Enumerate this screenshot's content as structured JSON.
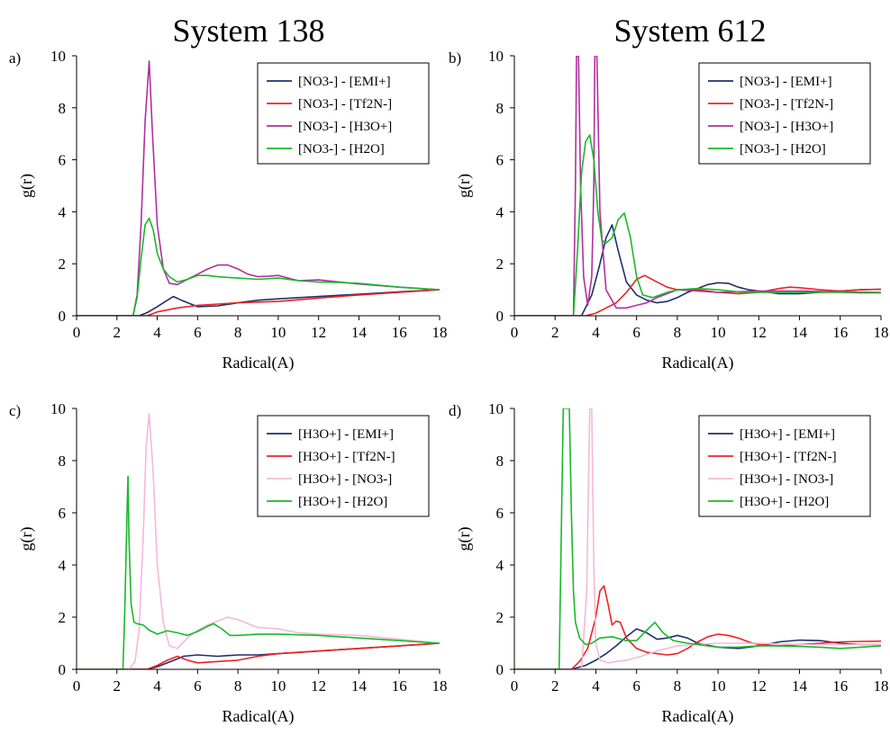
{
  "column_titles": [
    "System 138",
    "System 612"
  ],
  "colors": {
    "navy": "#1f2f6b",
    "red": "#ee2222",
    "magenta": "#b0309e",
    "pink": "#f5b8d9",
    "green": "#19b82a"
  },
  "chart_data": [
    {
      "type": "line",
      "panel_label": "a)",
      "xlabel": "Radical(A)",
      "ylabel": "g(r)",
      "xlim": [
        0,
        18
      ],
      "ylim": [
        0,
        10
      ],
      "xticks": [
        0,
        2,
        4,
        6,
        8,
        10,
        12,
        14,
        16,
        18
      ],
      "yticks": [
        0,
        2,
        4,
        6,
        8,
        10
      ],
      "legend_position": "top-right",
      "series": [
        {
          "name": "[NO3-] - [EMI+]",
          "color": "#1f2f6b",
          "x": [
            0,
            3.1,
            3.5,
            4.0,
            4.5,
            4.8,
            5.2,
            6.0,
            7.0,
            8.0,
            9.0,
            10.0,
            12.0,
            14.0,
            16.0,
            18.0
          ],
          "y": [
            0,
            0,
            0.12,
            0.35,
            0.6,
            0.74,
            0.6,
            0.35,
            0.38,
            0.5,
            0.6,
            0.65,
            0.74,
            0.83,
            0.92,
            1.0
          ]
        },
        {
          "name": "[NO3-] - [Tf2N-]",
          "color": "#ee2222",
          "x": [
            0,
            3.5,
            4.0,
            5.0,
            6.0,
            7.0,
            8.0,
            10.0,
            12.0,
            14.0,
            16.0,
            18.0
          ],
          "y": [
            0,
            0,
            0.15,
            0.3,
            0.4,
            0.45,
            0.5,
            0.55,
            0.68,
            0.8,
            0.9,
            1.0
          ]
        },
        {
          "name": "[NO3-] - [H3O+]",
          "color": "#b0309e",
          "x": [
            0,
            2.8,
            3.0,
            3.2,
            3.4,
            3.6,
            3.75,
            4.0,
            4.3,
            4.6,
            5.0,
            5.5,
            6.0,
            6.5,
            7.0,
            7.5,
            8.0,
            8.5,
            9.0,
            9.5,
            10.0,
            10.5,
            11.0,
            12.0,
            13.0,
            14.0,
            16.0,
            18.0
          ],
          "y": [
            0,
            0,
            0.8,
            3.5,
            7.5,
            9.8,
            7.2,
            3.5,
            1.8,
            1.25,
            1.2,
            1.4,
            1.6,
            1.8,
            1.95,
            1.95,
            1.8,
            1.6,
            1.5,
            1.52,
            1.55,
            1.45,
            1.35,
            1.38,
            1.3,
            1.22,
            1.1,
            1.0
          ]
        },
        {
          "name": "[NO3-] - [H2O]",
          "color": "#19b82a",
          "x": [
            0,
            2.8,
            3.0,
            3.2,
            3.4,
            3.6,
            3.8,
            4.0,
            4.3,
            4.6,
            5.0,
            5.5,
            6.0,
            6.5,
            7.0,
            8.0,
            9.0,
            10.0,
            11.0,
            12.0,
            13.0,
            14.0,
            16.0,
            18.0
          ],
          "y": [
            0,
            0,
            0.7,
            2.2,
            3.5,
            3.75,
            3.3,
            2.4,
            1.8,
            1.5,
            1.3,
            1.4,
            1.55,
            1.55,
            1.5,
            1.45,
            1.4,
            1.45,
            1.35,
            1.3,
            1.28,
            1.25,
            1.1,
            1.0
          ]
        }
      ]
    },
    {
      "type": "line",
      "panel_label": "b)",
      "xlabel": "Radical(A)",
      "ylabel": "g(r)",
      "xlim": [
        0,
        18
      ],
      "ylim": [
        0,
        10
      ],
      "xticks": [
        0,
        2,
        4,
        6,
        8,
        10,
        12,
        14,
        16,
        18
      ],
      "yticks": [
        0,
        2,
        4,
        6,
        8,
        10
      ],
      "legend_position": "top-right",
      "series": [
        {
          "name": "[NO3-] - [EMI+]",
          "color": "#1f2f6b",
          "x": [
            0,
            3.3,
            3.8,
            4.2,
            4.5,
            4.8,
            5.1,
            5.5,
            6.0,
            6.5,
            7.0,
            7.5,
            8.0,
            8.5,
            9.0,
            9.5,
            10.0,
            10.5,
            11.0,
            11.5,
            12.0,
            13.0,
            14.0,
            15.0,
            16.0,
            17.0,
            18.0
          ],
          "y": [
            0,
            0,
            0.8,
            2.0,
            3.0,
            3.5,
            2.5,
            1.3,
            0.8,
            0.6,
            0.5,
            0.55,
            0.7,
            0.9,
            1.05,
            1.2,
            1.27,
            1.25,
            1.1,
            1.0,
            0.95,
            0.85,
            0.85,
            0.9,
            0.95,
            1.0,
            1.02
          ]
        },
        {
          "name": "[NO3-] - [Tf2N-]",
          "color": "#ee2222",
          "x": [
            0,
            3.5,
            4.0,
            4.5,
            5.0,
            5.5,
            6.0,
            6.4,
            7.0,
            7.5,
            8.0,
            9.0,
            10.0,
            11.0,
            12.0,
            13.0,
            13.5,
            14.0,
            15.0,
            16.0,
            17.0,
            18.0
          ],
          "y": [
            0,
            0,
            0.1,
            0.3,
            0.5,
            0.9,
            1.4,
            1.55,
            1.3,
            1.1,
            1.0,
            1.0,
            0.9,
            0.85,
            0.9,
            1.05,
            1.1,
            1.08,
            1.0,
            0.95,
            1.0,
            1.02
          ]
        },
        {
          "name": "[NO3-] - [H3O+]",
          "color": "#b0309e",
          "x": [
            0,
            2.9,
            3.0,
            3.05,
            3.1,
            3.15,
            3.25,
            3.4,
            3.6,
            3.8,
            3.9,
            3.95,
            4.05,
            4.2,
            4.5,
            5.0,
            5.5,
            6.0,
            6.5,
            7.0,
            8.0,
            9.0,
            10.0,
            12.0,
            14.0,
            16.0,
            18.0
          ],
          "y": [
            0,
            0,
            5.0,
            10,
            10,
            10,
            5.0,
            1.5,
            0.4,
            1.5,
            5.0,
            10,
            10,
            4.0,
            1.0,
            0.3,
            0.3,
            0.4,
            0.5,
            0.7,
            1.0,
            0.95,
            0.9,
            0.95,
            0.95,
            0.92,
            0.9
          ]
        },
        {
          "name": "[NO3-] - [H2O]",
          "color": "#19b82a",
          "x": [
            0,
            2.9,
            3.1,
            3.3,
            3.5,
            3.7,
            3.9,
            4.1,
            4.3,
            4.5,
            4.8,
            5.1,
            5.4,
            5.7,
            6.0,
            6.3,
            6.8,
            7.5,
            8.0,
            9.0,
            10.0,
            11.0,
            12.0,
            13.0,
            14.0,
            15.0,
            16.0,
            17.0,
            18.0
          ],
          "y": [
            0,
            0,
            2.5,
            5.5,
            6.7,
            6.95,
            6.0,
            4.0,
            2.9,
            2.8,
            3.0,
            3.7,
            3.95,
            3.0,
            1.5,
            0.8,
            0.7,
            0.9,
            1.0,
            1.05,
            1.0,
            0.92,
            0.9,
            0.9,
            0.9,
            0.9,
            0.9,
            0.88,
            0.88
          ]
        }
      ]
    },
    {
      "type": "line",
      "panel_label": "c)",
      "xlabel": "Radical(A)",
      "ylabel": "g(r)",
      "xlim": [
        0,
        18
      ],
      "ylim": [
        0,
        10
      ],
      "xticks": [
        0,
        2,
        4,
        6,
        8,
        10,
        12,
        14,
        16,
        18
      ],
      "yticks": [
        0,
        2,
        4,
        6,
        8,
        10
      ],
      "legend_position": "top-right",
      "series": [
        {
          "name": "[H3O+] - [EMI+]",
          "color": "#1f2f6b",
          "x": [
            0,
            3.5,
            4.0,
            4.5,
            5.0,
            5.3,
            6.0,
            7.0,
            8.0,
            9.0,
            10.0,
            12.0,
            14.0,
            16.0,
            18.0
          ],
          "y": [
            0,
            0,
            0.1,
            0.25,
            0.4,
            0.5,
            0.55,
            0.5,
            0.55,
            0.55,
            0.6,
            0.7,
            0.8,
            0.9,
            1.0
          ]
        },
        {
          "name": "[H3O+] - [Tf2N-]",
          "color": "#ee2222",
          "x": [
            0,
            3.5,
            4.0,
            4.5,
            5.0,
            5.5,
            6.0,
            7.0,
            8.0,
            9.0,
            10.0,
            12.0,
            14.0,
            16.0,
            18.0
          ],
          "y": [
            0,
            0,
            0.15,
            0.35,
            0.5,
            0.35,
            0.25,
            0.3,
            0.35,
            0.5,
            0.6,
            0.7,
            0.8,
            0.9,
            1.0
          ]
        },
        {
          "name": "[H3O+] - [NO3-]",
          "color": "#f5b8d9",
          "x": [
            0,
            2.6,
            2.9,
            3.1,
            3.3,
            3.45,
            3.6,
            3.8,
            4.0,
            4.3,
            4.6,
            5.0,
            5.5,
            6.0,
            6.5,
            7.0,
            7.5,
            8.0,
            9.0,
            10.0,
            11.0,
            12.0,
            14.0,
            16.0,
            18.0
          ],
          "y": [
            0,
            0,
            0.3,
            1.5,
            5.0,
            8.5,
            9.8,
            7.5,
            4.0,
            1.8,
            0.9,
            0.8,
            1.2,
            1.5,
            1.7,
            1.85,
            2.0,
            1.9,
            1.6,
            1.55,
            1.4,
            1.35,
            1.3,
            1.15,
            1.0
          ]
        },
        {
          "name": "[H3O+] - [H2O]",
          "color": "#19b82a",
          "x": [
            0,
            2.3,
            2.4,
            2.5,
            2.55,
            2.6,
            2.7,
            2.85,
            3.0,
            3.3,
            3.6,
            4.0,
            4.5,
            5.0,
            5.5,
            6.0,
            6.5,
            6.8,
            7.2,
            7.6,
            8.0,
            9.0,
            10.0,
            12.0,
            14.0,
            16.0,
            18.0
          ],
          "y": [
            0,
            0,
            2.5,
            6.0,
            7.4,
            5.0,
            2.5,
            1.8,
            1.75,
            1.7,
            1.5,
            1.35,
            1.48,
            1.4,
            1.3,
            1.45,
            1.65,
            1.75,
            1.55,
            1.3,
            1.3,
            1.35,
            1.35,
            1.3,
            1.2,
            1.1,
            1.0
          ]
        }
      ]
    },
    {
      "type": "line",
      "panel_label": "d)",
      "xlabel": "Radical(A)",
      "ylabel": "g(r)",
      "xlim": [
        0,
        18
      ],
      "ylim": [
        0,
        10
      ],
      "xticks": [
        0,
        2,
        4,
        6,
        8,
        10,
        12,
        14,
        16,
        18
      ],
      "yticks": [
        0,
        2,
        4,
        6,
        8,
        10
      ],
      "legend_position": "top-right",
      "series": [
        {
          "name": "[H3O+] - [EMI+]",
          "color": "#1f2f6b",
          "x": [
            0,
            2.8,
            3.5,
            4.0,
            4.5,
            5.0,
            5.5,
            6.0,
            6.5,
            7.0,
            7.5,
            8.0,
            8.5,
            9.0,
            10.0,
            11.0,
            12.0,
            13.0,
            14.0,
            15.0,
            16.0,
            17.0,
            18.0
          ],
          "y": [
            0,
            0,
            0.15,
            0.35,
            0.6,
            0.9,
            1.25,
            1.55,
            1.4,
            1.15,
            1.2,
            1.3,
            1.2,
            1.0,
            0.85,
            0.8,
            0.9,
            1.05,
            1.12,
            1.1,
            1.0,
            0.95,
            0.95
          ]
        },
        {
          "name": "[H3O+] - [Tf2N-]",
          "color": "#ee2222",
          "x": [
            0,
            2.8,
            3.2,
            3.6,
            4.0,
            4.2,
            4.4,
            4.6,
            4.8,
            5.0,
            5.2,
            5.5,
            6.0,
            6.5,
            7.0,
            7.5,
            8.0,
            8.5,
            9.0,
            9.5,
            10.0,
            10.5,
            11.0,
            11.5,
            12.0,
            13.0,
            14.0,
            15.0,
            16.0,
            17.0,
            18.0
          ],
          "y": [
            0,
            0,
            0.3,
            0.8,
            2.0,
            3.0,
            3.2,
            2.5,
            1.7,
            1.85,
            1.8,
            1.2,
            0.8,
            0.65,
            0.6,
            0.55,
            0.6,
            0.8,
            1.05,
            1.25,
            1.35,
            1.3,
            1.2,
            1.05,
            0.95,
            0.9,
            0.95,
            1.0,
            1.05,
            1.07,
            1.08
          ]
        },
        {
          "name": "[H3O+] - [NO3-]",
          "color": "#f5b8d9",
          "x": [
            0,
            3.3,
            3.55,
            3.7,
            3.8,
            3.9,
            4.0,
            4.2,
            4.6,
            5.0,
            5.5,
            6.0,
            7.0,
            8.0,
            10.0,
            12.0,
            14.0,
            16.0,
            18.0
          ],
          "y": [
            0,
            0,
            3.0,
            10,
            10,
            4.0,
            1.0,
            0.35,
            0.25,
            0.3,
            0.35,
            0.45,
            0.7,
            0.9,
            1.0,
            1.0,
            0.95,
            0.95,
            0.95
          ]
        },
        {
          "name": "[H3O+] - [H2O]",
          "color": "#19b82a",
          "x": [
            0,
            2.2,
            2.3,
            2.4,
            2.5,
            2.6,
            2.7,
            2.8,
            2.9,
            3.0,
            3.2,
            3.5,
            3.8,
            4.2,
            4.8,
            5.5,
            6.0,
            6.5,
            6.9,
            7.3,
            7.8,
            8.5,
            9.0,
            10.0,
            11.0,
            12.0,
            13.0,
            14.0,
            15.0,
            16.0,
            17.0,
            18.0
          ],
          "y": [
            0,
            0,
            5.0,
            10,
            10,
            10,
            10,
            6.0,
            3.0,
            1.8,
            1.2,
            0.95,
            1.0,
            1.2,
            1.25,
            1.1,
            1.1,
            1.5,
            1.8,
            1.4,
            1.1,
            1.0,
            0.95,
            0.85,
            0.85,
            0.9,
            0.9,
            0.88,
            0.85,
            0.8,
            0.85,
            0.9
          ]
        }
      ]
    }
  ]
}
